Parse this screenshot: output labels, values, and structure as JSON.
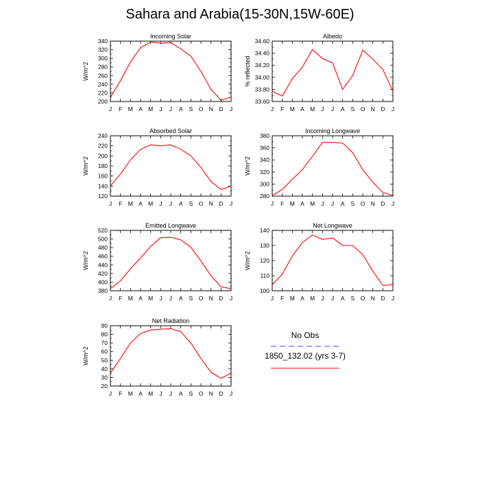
{
  "title": "Sahara and Arabia(15-30N,15W-60E)",
  "legend": {
    "items": [
      {
        "label": "No Obs",
        "color": "#4444ff",
        "dash": true
      },
      {
        "label": "1850_132.02 (yrs 3-7)",
        "color": "#ff0000",
        "dash": false
      }
    ]
  },
  "chart_data": [
    {
      "type": "line",
      "title": "Incoming Solar",
      "ylabel": "W/m^2",
      "ylim": [
        200,
        340
      ],
      "yticks": [
        "200",
        "220",
        "240",
        "260",
        "280",
        "300",
        "320",
        "340"
      ],
      "categories": [
        "J",
        "F",
        "M",
        "A",
        "M",
        "J",
        "J",
        "A",
        "S",
        "O",
        "N",
        "D",
        "J"
      ],
      "series": [
        {
          "name": "1850_132.02 (yrs 3-7)",
          "color": "#ff0000",
          "values": [
            210,
            248,
            292,
            325,
            338,
            335,
            337,
            322,
            305,
            270,
            228,
            203,
            210
          ]
        }
      ]
    },
    {
      "type": "line",
      "title": "Albedo",
      "ylabel": "% reflected",
      "ylim": [
        33.6,
        34.6
      ],
      "yticks": [
        "33.60",
        "33.80",
        "34.00",
        "34.20",
        "34.40",
        "34.60"
      ],
      "categories": [
        "J",
        "F",
        "M",
        "A",
        "M",
        "J",
        "J",
        "A",
        "S",
        "O",
        "N",
        "D",
        "J"
      ],
      "series": [
        {
          "name": "1850_132.02 (yrs 3-7)",
          "color": "#ff0000",
          "values": [
            33.77,
            33.69,
            33.98,
            34.17,
            34.46,
            34.31,
            34.24,
            33.8,
            34.03,
            34.45,
            34.3,
            34.13,
            33.77
          ]
        }
      ]
    },
    {
      "type": "line",
      "title": "Absorbed Solar",
      "ylabel": "W/m^2",
      "ylim": [
        120,
        240
      ],
      "yticks": [
        "120",
        "140",
        "160",
        "180",
        "200",
        "220",
        "240"
      ],
      "categories": [
        "J",
        "F",
        "M",
        "A",
        "M",
        "J",
        "J",
        "A",
        "S",
        "O",
        "N",
        "D",
        "J"
      ],
      "series": [
        {
          "name": "1850_132.02 (yrs 3-7)",
          "color": "#ff0000",
          "values": [
            140,
            164,
            192,
            213,
            222,
            220,
            222,
            213,
            200,
            177,
            149,
            133,
            140
          ]
        }
      ]
    },
    {
      "type": "line",
      "title": "Incoming Longwave",
      "ylabel": "W/m^2",
      "ylim": [
        280,
        380
      ],
      "yticks": [
        "280",
        "300",
        "320",
        "340",
        "360",
        "380"
      ],
      "categories": [
        "J",
        "F",
        "M",
        "A",
        "M",
        "J",
        "J",
        "A",
        "S",
        "O",
        "N",
        "D",
        "J"
      ],
      "series": [
        {
          "name": "1850_132.02 (yrs 3-7)",
          "color": "#ff0000",
          "values": [
            281,
            291,
            308,
            324,
            346,
            369,
            369,
            368,
            352,
            324,
            303,
            286,
            281
          ]
        }
      ]
    },
    {
      "type": "line",
      "title": "Emitted Longwave",
      "ylabel": "W/m^2",
      "ylim": [
        380,
        520
      ],
      "yticks": [
        "380",
        "400",
        "420",
        "440",
        "460",
        "480",
        "500",
        "520"
      ],
      "categories": [
        "J",
        "F",
        "M",
        "A",
        "M",
        "J",
        "J",
        "A",
        "S",
        "O",
        "N",
        "D",
        "J"
      ],
      "series": [
        {
          "name": "1850_132.02 (yrs 3-7)",
          "color": "#ff0000",
          "values": [
            385,
            403,
            431,
            456,
            483,
            503,
            504,
            498,
            481,
            449,
            415,
            389,
            385
          ]
        }
      ]
    },
    {
      "type": "line",
      "title": "Net Longwave",
      "ylabel": "W/m^2",
      "ylim": [
        100,
        140
      ],
      "yticks": [
        "100",
        "110",
        "120",
        "130",
        "140"
      ],
      "categories": [
        "J",
        "F",
        "M",
        "A",
        "M",
        "J",
        "J",
        "A",
        "S",
        "O",
        "N",
        "D",
        "J"
      ],
      "series": [
        {
          "name": "1850_132.02 (yrs 3-7)",
          "color": "#ff0000",
          "values": [
            104,
            111,
            123,
            132,
            137,
            134,
            135,
            130,
            130,
            124,
            113,
            103.5,
            104
          ]
        }
      ]
    },
    {
      "type": "line",
      "title": "Net Radiation",
      "ylabel": "W/m^2",
      "ylim": [
        20,
        90
      ],
      "yticks": [
        "20",
        "30",
        "40",
        "50",
        "60",
        "70",
        "80",
        "90"
      ],
      "categories": [
        "J",
        "F",
        "M",
        "A",
        "M",
        "J",
        "J",
        "A",
        "S",
        "O",
        "N",
        "D",
        "J"
      ],
      "series": [
        {
          "name": "1850_132.02 (yrs 3-7)",
          "color": "#ff0000",
          "values": [
            35,
            52,
            70,
            81,
            85,
            86,
            86.5,
            83,
            70,
            52,
            36,
            29,
            35
          ]
        }
      ]
    }
  ]
}
